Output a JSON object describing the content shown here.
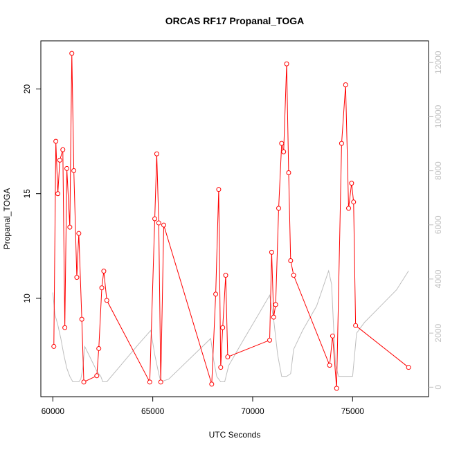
{
  "chart_data": {
    "type": "line",
    "title": "ORCAS RF17 Propanal_TOGA",
    "xlabel": "UTC Seconds",
    "ylabel": "Propanal_TOGA",
    "xlim": [
      59400,
      78800
    ],
    "ylim": [
      5.3,
      22.3
    ],
    "y2lim": [
      -350,
      12800
    ],
    "x_ticks": [
      60000,
      65000,
      70000,
      75000
    ],
    "y_ticks": [
      10,
      15,
      20
    ],
    "y2_ticks": [
      0,
      2000,
      4000,
      6000,
      8000,
      10000,
      12000
    ],
    "grid": false,
    "legend": "none",
    "colors": {
      "primary": "#ff0000",
      "secondary": "#bebebe"
    },
    "series": [
      {
        "axis": "left",
        "style": "line+points",
        "color": "#ff0000",
        "x": [
          60050,
          60150,
          60250,
          60350,
          60500,
          60600,
          60700,
          60850,
          60950,
          61050,
          61200,
          61300,
          61450,
          61550,
          62200,
          62300,
          62450,
          62550,
          62700,
          64850,
          65100,
          65200,
          65300,
          65400,
          65550,
          67950,
          68150,
          68300,
          68400,
          68500,
          68650,
          68750,
          70850,
          70950,
          71050,
          71150,
          71300,
          71450,
          71550,
          71700,
          71800,
          71900,
          72050,
          73850,
          74000,
          74200,
          74450,
          74650,
          74800,
          74950,
          75050,
          75150,
          77800
        ],
        "y": [
          7.7,
          17.5,
          15.0,
          16.6,
          17.1,
          8.6,
          16.2,
          13.4,
          21.7,
          16.1,
          11.0,
          13.1,
          9.0,
          6.0,
          6.3,
          7.6,
          10.5,
          11.3,
          9.9,
          6.0,
          13.8,
          16.9,
          13.6,
          6.0,
          13.5,
          5.9,
          10.2,
          15.2,
          6.7,
          8.6,
          11.1,
          7.2,
          8.0,
          12.2,
          9.1,
          9.7,
          14.3,
          17.4,
          17.0,
          21.2,
          16.0,
          11.8,
          11.1,
          6.8,
          8.2,
          5.7,
          17.4,
          20.2,
          14.3,
          15.5,
          14.6,
          8.7,
          6.7
        ]
      },
      {
        "axis": "right",
        "style": "line",
        "color": "#bebebe",
        "x": [
          60000,
          60100,
          60250,
          60400,
          60550,
          60700,
          60850,
          61000,
          61150,
          61300,
          61400,
          61500,
          61600,
          61800,
          62000,
          62200,
          62400,
          62500,
          62700,
          63500,
          64300,
          64900,
          65100,
          65300,
          65400,
          65800,
          66500,
          67200,
          67900,
          68050,
          68200,
          68400,
          68600,
          68800,
          69500,
          70300,
          70850,
          71050,
          71250,
          71450,
          71700,
          71900,
          72050,
          72500,
          73200,
          73800,
          73950,
          74050,
          74150,
          74300,
          74500,
          74700,
          75000,
          75200,
          75600,
          76400,
          77200,
          77800
        ],
        "y": [
          3500,
          2700,
          2300,
          1800,
          1200,
          700,
          400,
          200,
          200,
          200,
          300,
          700,
          1500,
          1200,
          900,
          600,
          400,
          200,
          200,
          900,
          1600,
          2100,
          1200,
          500,
          200,
          300,
          800,
          1300,
          1800,
          1000,
          400,
          200,
          200,
          800,
          1700,
          2700,
          3400,
          2500,
          1200,
          400,
          400,
          500,
          1400,
          2100,
          3000,
          4300,
          3800,
          2200,
          800,
          400,
          400,
          400,
          400,
          2000,
          2400,
          3000,
          3600,
          4300
        ]
      }
    ]
  }
}
